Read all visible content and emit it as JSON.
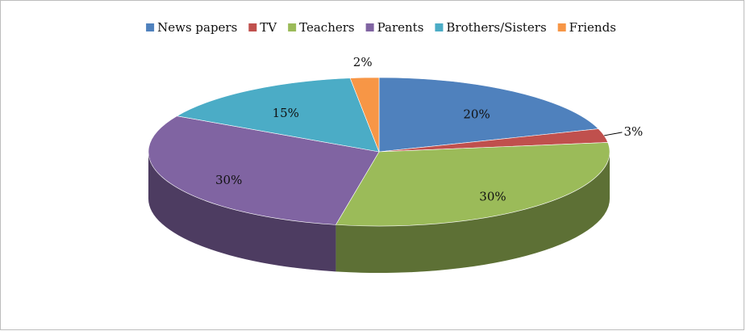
{
  "chart_data": {
    "type": "pie3d",
    "categories": [
      "News papers",
      "TV",
      "Teachers",
      "Parents",
      "Brothers/Sisters",
      "Friends"
    ],
    "values": [
      20,
      3,
      30,
      30,
      15,
      2
    ],
    "value_labels": [
      "20%",
      "3%",
      "30%",
      "30%",
      "15%",
      "2%"
    ],
    "colors": [
      "#4f81bd",
      "#c0504d",
      "#9bbb59",
      "#8064a2",
      "#4bacc6",
      "#f79646"
    ],
    "legend": "top"
  }
}
